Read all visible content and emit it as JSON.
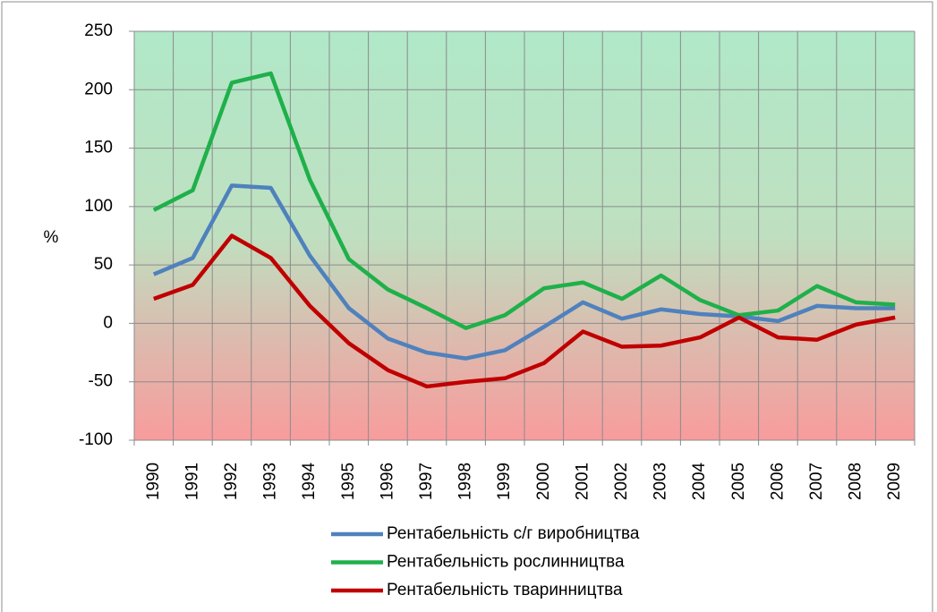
{
  "chart_data": {
    "type": "line",
    "y_label": "%",
    "categories": [
      "1990",
      "1991",
      "1992",
      "1993",
      "1994",
      "1995",
      "1996",
      "1997",
      "1998",
      "1999",
      "2000",
      "2001",
      "2002",
      "2003",
      "2004",
      "2005",
      "2006",
      "2007",
      "2008",
      "2009"
    ],
    "series": [
      {
        "name": "Рентабельність с/г виробництва",
        "color": "#4f81bd",
        "values": [
          42,
          56,
          118,
          116,
          58,
          13,
          -13,
          -25,
          -30,
          -23,
          -3,
          18,
          4,
          12,
          8,
          6,
          2,
          15,
          13,
          13
        ]
      },
      {
        "name": "Рентабельність рослинництва",
        "color": "#1fb04a",
        "values": [
          97,
          114,
          206,
          214,
          123,
          55,
          29,
          13,
          -4,
          7,
          30,
          35,
          21,
          41,
          20,
          7,
          11,
          32,
          18,
          16
        ]
      },
      {
        "name": "Рентабельність тваринництва",
        "color": "#c00000",
        "values": [
          21,
          33,
          75,
          56,
          15,
          -17,
          -40,
          -54,
          -50,
          -47,
          -34,
          -7,
          -20,
          -19,
          -12,
          5,
          -12,
          -14,
          -1,
          5
        ]
      }
    ],
    "ylim": [
      -100,
      250
    ],
    "yticks": [
      -100,
      -50,
      0,
      50,
      100,
      150,
      200,
      250
    ],
    "grid": true,
    "legend": "bottom"
  }
}
